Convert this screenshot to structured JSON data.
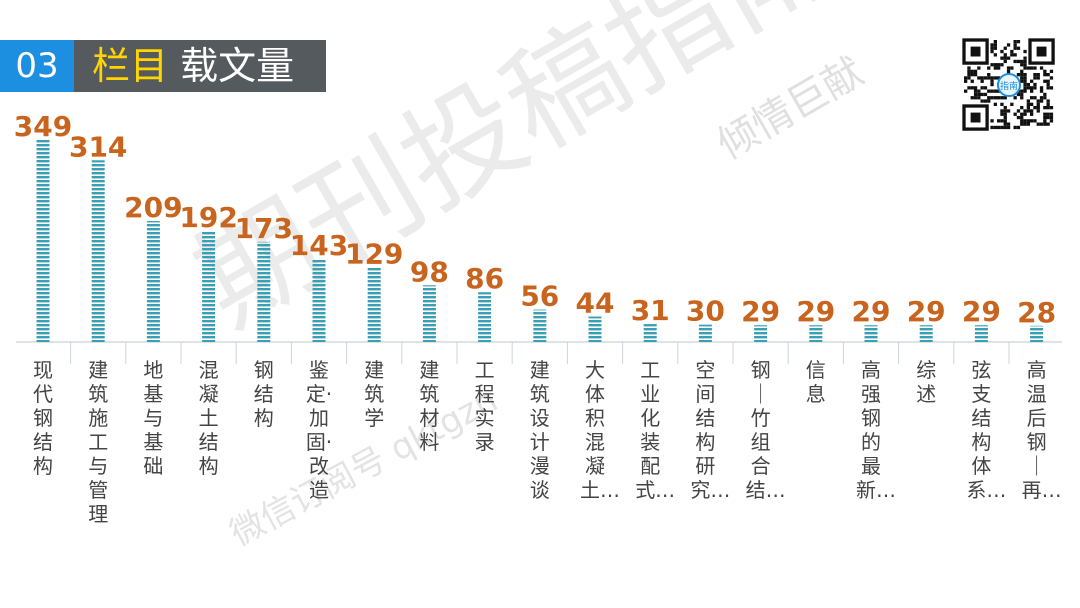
{
  "header": {
    "section_number": "03",
    "title_highlight": "栏目",
    "title_rest": "载文量"
  },
  "watermark": {
    "big": "期刊投稿指南",
    "small": "倾情巨献",
    "id_text": "微信订阅号 qktgzn"
  },
  "qr_badge": "指南",
  "colors": {
    "bar": "#3a9fb4",
    "value_label": "#c8641e",
    "header_blue": "#1d8fe0",
    "header_gray": "#555a5e",
    "highlight": "#ffd400"
  },
  "chart_data": {
    "type": "bar",
    "title": "",
    "xlabel": "",
    "ylabel": "",
    "ylim": [
      0,
      349
    ],
    "grid": false,
    "legend": "none",
    "categories": [
      "现代钢结构",
      "建筑施工与管理",
      "地基与基础",
      "混凝土结构",
      "钢结构",
      "鉴定·加固·改造",
      "建筑学",
      "建筑材料",
      "工程实录",
      "建筑设计漫谈",
      "大体积混凝土…",
      "工业化装配式…",
      "空间结构研究…",
      "钢｜竹组合结…",
      "信息",
      "高强钢的最新…",
      "综述",
      "弦支结构体系…",
      "高温后钢｜再…"
    ],
    "values": [
      349,
      314,
      209,
      192,
      173,
      143,
      129,
      98,
      86,
      56,
      44,
      31,
      30,
      29,
      29,
      29,
      29,
      29,
      28
    ]
  }
}
